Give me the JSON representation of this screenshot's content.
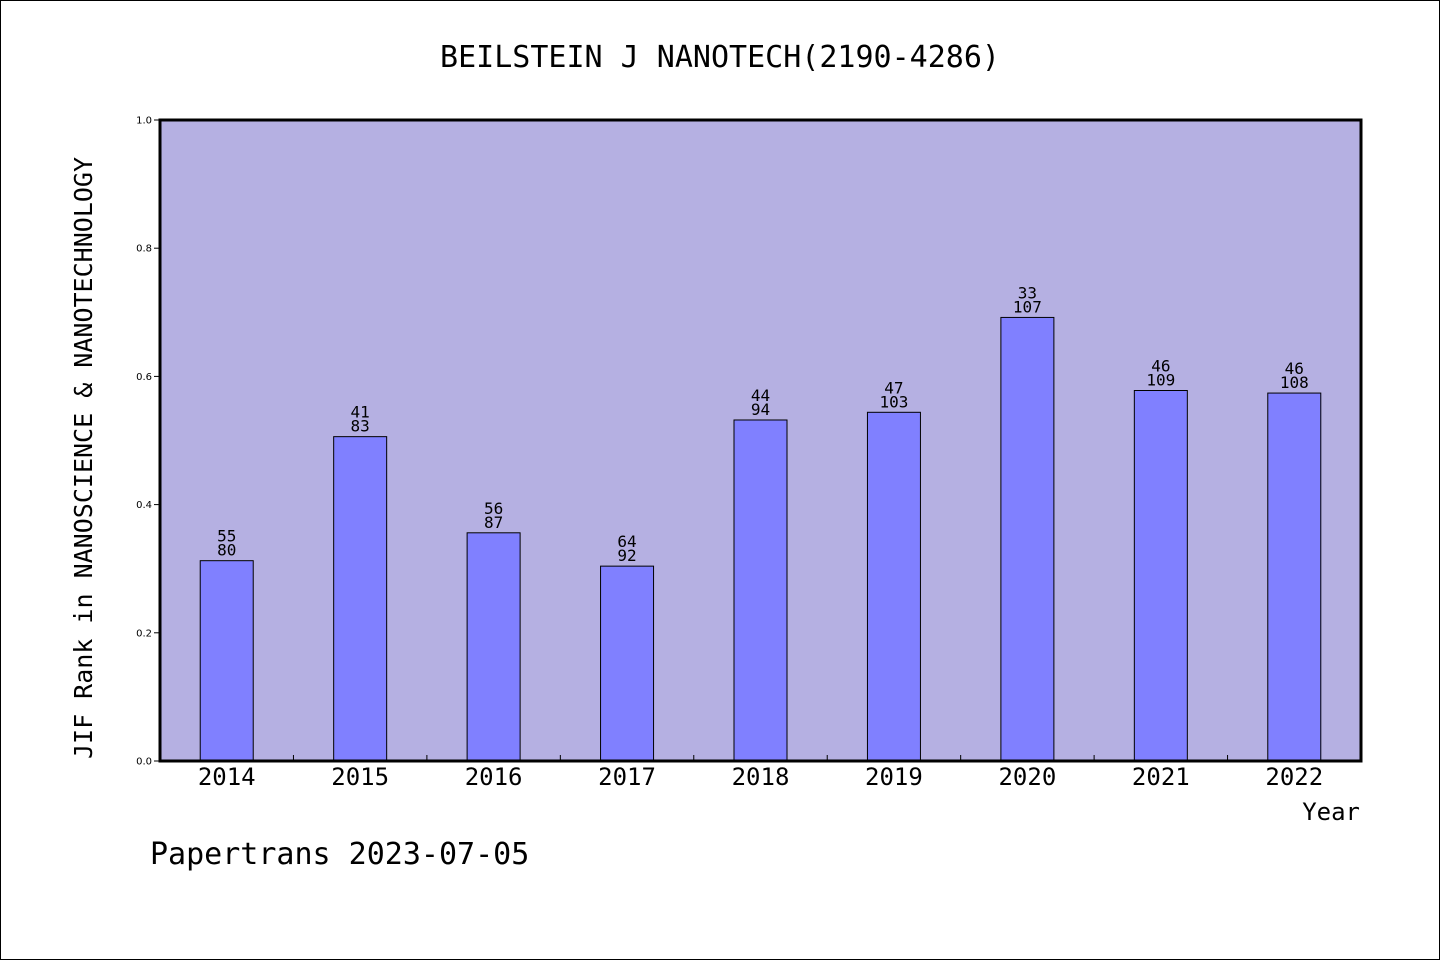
{
  "chart_data": {
    "type": "bar",
    "title": "BEILSTEIN J NANOTECH(2190-4286)",
    "xlabel": "Year",
    "ylabel": "JIF Rank in NANOSCIENCE & NANOTECHNOLOGY",
    "categories": [
      "2014",
      "2015",
      "2016",
      "2017",
      "2018",
      "2019",
      "2020",
      "2021",
      "2022"
    ],
    "values": [
      0.3125,
      0.506,
      0.356,
      0.304,
      0.532,
      0.544,
      0.692,
      0.578,
      0.574
    ],
    "rank_labels": [
      "55",
      "41",
      "56",
      "64",
      "44",
      "47",
      "33",
      "46",
      "46"
    ],
    "total_labels": [
      "80",
      "83",
      "87",
      "92",
      "94",
      "103",
      "107",
      "109",
      "108"
    ],
    "ylim": [
      0,
      1.0
    ],
    "yticks": [
      "0.0",
      "0.2",
      "0.4",
      "0.6",
      "0.8",
      "1.0"
    ],
    "grid": false,
    "colors": {
      "plot_background": "#b5b0e2",
      "bar_fill": "#8080ff",
      "bar_stroke": "#000000"
    }
  },
  "footer": "Papertrans 2023-07-05"
}
